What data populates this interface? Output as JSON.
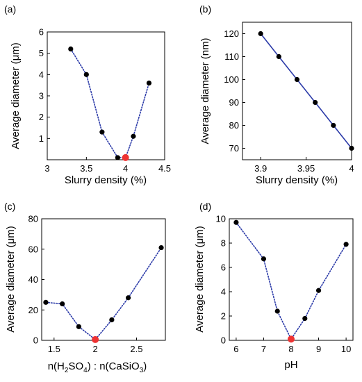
{
  "chart_data": [
    {
      "panel": "(a)",
      "type": "scatter",
      "xlabel": "Slurry density (%)",
      "ylabel": "Average diameter (μm)",
      "xlim": [
        3,
        4.5
      ],
      "ylim": [
        0,
        6
      ],
      "xticks": [
        3,
        3.5,
        4,
        4.5
      ],
      "xtick_labels": [
        "3",
        "3.5",
        "4",
        "4.5"
      ],
      "yticks": [
        1,
        2,
        3,
        4,
        5,
        6
      ],
      "ytick_labels": [
        "1",
        "2",
        "3",
        "4",
        "5",
        "6"
      ],
      "line_style": "dotted",
      "line_color": "#2b3aa8",
      "highlight_color": "#ee3333",
      "series": [
        {
          "x": [
            3.3,
            3.5,
            3.7,
            3.9,
            4.0,
            4.1,
            4.3
          ],
          "y": [
            5.2,
            4.0,
            1.3,
            0.1,
            0.1,
            1.1,
            3.6
          ],
          "highlight_index": 4
        }
      ]
    },
    {
      "panel": "(b)",
      "type": "line",
      "xlabel": "Slurry density (%)",
      "ylabel": "Average diameter (nm)",
      "xlim": [
        3.88,
        4.0
      ],
      "ylim": [
        65,
        125
      ],
      "xticks": [
        3.9,
        3.95,
        4.0
      ],
      "xtick_labels": [
        "3.9",
        "3.95",
        "4"
      ],
      "yticks": [
        70,
        80,
        90,
        100,
        110,
        120
      ],
      "ytick_labels": [
        "70",
        "80",
        "90",
        "100",
        "110",
        "120"
      ],
      "line_style": "solid",
      "line_color": "#2b3aa8",
      "series": [
        {
          "x": [
            3.9,
            3.92,
            3.94,
            3.96,
            3.98,
            4.0
          ],
          "y": [
            120,
            110,
            100,
            90,
            80,
            70
          ]
        }
      ]
    },
    {
      "panel": "(c)",
      "type": "scatter",
      "xlabel": "",
      "ylabel": "Average diameter (μm)",
      "xlim": [
        1.35,
        2.85
      ],
      "ylim": [
        0,
        80
      ],
      "xticks": [
        1.5,
        2,
        2.5
      ],
      "xtick_labels": [
        "1.5",
        "2",
        "2.5"
      ],
      "yticks": [
        0,
        20,
        40,
        60,
        80
      ],
      "ytick_labels": [
        "0",
        "20",
        "40",
        "60",
        "80"
      ],
      "line_style": "dotted",
      "line_color": "#2b3aa8",
      "highlight_color": "#ee3333",
      "xlabel_parts": {
        "a": "n(H",
        "a_sub": "2",
        "b": "SO",
        "b_sub": "4",
        "c": ") : n(CaSiO",
        "c_sub": "3",
        "d": ")"
      },
      "series": [
        {
          "x": [
            1.4,
            1.6,
            1.8,
            2.0,
            2.2,
            2.4,
            2.8
          ],
          "y": [
            25,
            24,
            9,
            0.5,
            13.5,
            28,
            61
          ],
          "highlight_index": 3
        }
      ]
    },
    {
      "panel": "(d)",
      "type": "scatter",
      "xlabel": "pH",
      "ylabel": "Average diameter (μm)",
      "xlim": [
        5.75,
        10.25
      ],
      "ylim": [
        0,
        10
      ],
      "xticks": [
        6,
        7,
        8,
        9,
        10
      ],
      "xtick_labels": [
        "6",
        "7",
        "8",
        "9",
        "10"
      ],
      "yticks": [
        0,
        2,
        4,
        6,
        8,
        10
      ],
      "ytick_labels": [
        "0",
        "2",
        "4",
        "6",
        "8",
        "10"
      ],
      "line_style": "dotted",
      "line_color": "#2b3aa8",
      "highlight_color": "#ee3333",
      "series": [
        {
          "x": [
            6,
            7,
            7.5,
            8,
            8.5,
            9,
            10
          ],
          "y": [
            9.7,
            6.7,
            2.4,
            0.1,
            1.8,
            4.1,
            7.9
          ],
          "highlight_index": 3
        }
      ]
    }
  ]
}
